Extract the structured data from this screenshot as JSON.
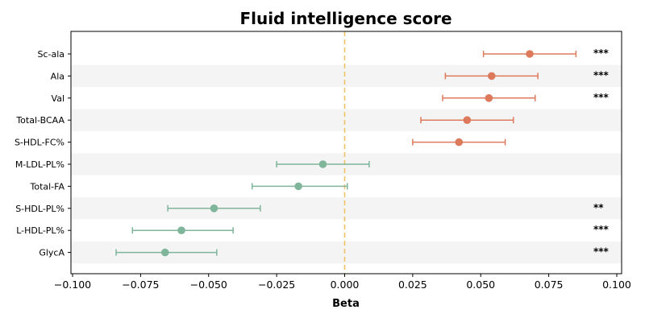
{
  "chart_data": {
    "type": "forest",
    "title": "Fluid intelligence score",
    "xlabel": "Beta",
    "xlim": [
      -0.1,
      0.1
    ],
    "xticks": [
      "−0.100",
      "−0.075",
      "−0.050",
      "−0.025",
      "0.000",
      "0.025",
      "0.050",
      "0.075",
      "0.100"
    ],
    "xtick_values": [
      -0.1,
      -0.075,
      -0.05,
      -0.025,
      0.0,
      0.025,
      0.05,
      0.075,
      0.1
    ],
    "reference_line": 0.0,
    "categories": [
      "Sc-ala",
      "Ala",
      "Val",
      "Total-BCAA",
      "S-HDL-FC%",
      "M-LDL-PL%",
      "Total-FA",
      "S-HDL-PL%",
      "L-HDL-PL%",
      "GlycA"
    ],
    "beta": [
      0.068,
      0.054,
      0.053,
      0.045,
      0.042,
      -0.008,
      -0.017,
      -0.048,
      -0.06,
      -0.066
    ],
    "ci_low": [
      0.051,
      0.037,
      0.036,
      0.028,
      0.025,
      -0.025,
      -0.034,
      -0.065,
      -0.078,
      -0.084
    ],
    "ci_high": [
      0.085,
      0.071,
      0.07,
      0.062,
      0.059,
      0.009,
      0.001,
      -0.031,
      -0.041,
      -0.047
    ],
    "significance": [
      "***",
      "***",
      "***",
      "",
      "",
      "",
      "",
      "**",
      "***",
      "***"
    ],
    "colors": {
      "positive": "#de7a5c",
      "negative": "#7fb59a",
      "reference_line": "#f2c26b",
      "band": "#f4f4f4"
    }
  }
}
